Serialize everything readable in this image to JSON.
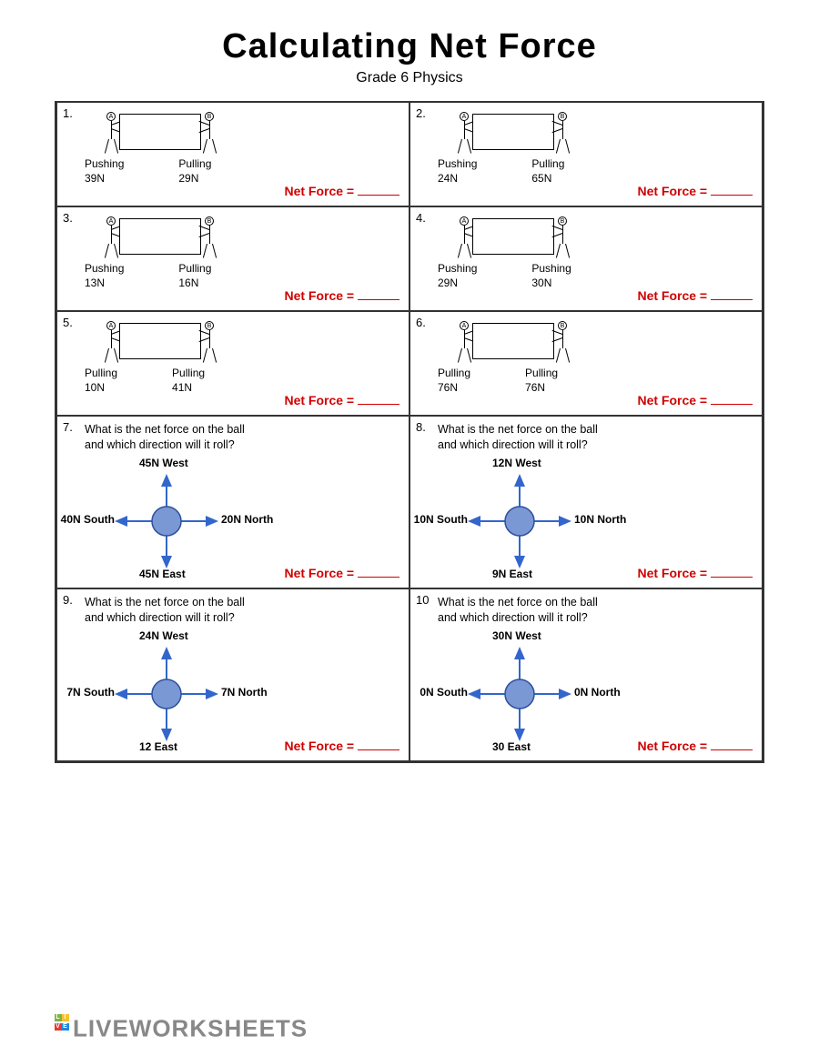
{
  "title": "Calculating Net Force",
  "subtitle": "Grade 6 Physics",
  "netforce_label": "Net Force =",
  "watermark": "LIVEWORKSHEETS",
  "colors": {
    "netforce": "#d10000",
    "ball_fill": "#7a98d4",
    "ball_stroke": "#2d4f9e",
    "arrow": "#3366cc",
    "border": "#333333"
  },
  "stick_problems": [
    {
      "num": "1.",
      "personA": "A",
      "personB": "B",
      "leftAction": "Pushing",
      "leftVal": "39N",
      "rightAction": "Pulling",
      "rightVal": "29N"
    },
    {
      "num": "2.",
      "personA": "A",
      "personB": "B",
      "leftAction": "Pushing",
      "leftVal": "24N",
      "rightAction": "Pulling",
      "rightVal": "65N"
    },
    {
      "num": "3.",
      "personA": "A",
      "personB": "B",
      "leftAction": "Pushing",
      "leftVal": "13N",
      "rightAction": "Pulling",
      "rightVal": "16N"
    },
    {
      "num": "4.",
      "personA": "A",
      "personB": "B",
      "leftAction": "Pushing",
      "leftVal": "29N",
      "rightAction": "Pushing",
      "rightVal": "30N"
    },
    {
      "num": "5.",
      "personA": "A",
      "personB": "B",
      "leftAction": "Pulling",
      "leftVal": "10N",
      "rightAction": "Pulling",
      "rightVal": "41N"
    },
    {
      "num": "6.",
      "personA": "A",
      "personB": "B",
      "leftAction": "Pulling",
      "leftVal": "76N",
      "rightAction": "Pulling",
      "rightVal": "76N"
    }
  ],
  "ball_question": "What is the net force on the ball and which direction will it roll?",
  "ball_problems": [
    {
      "num": "7.",
      "up": "45N West",
      "down": "45N East",
      "left": "40N South",
      "right": "20N North"
    },
    {
      "num": "8.",
      "up": "12N West",
      "down": "9N East",
      "left": "10N South",
      "right": "10N North"
    },
    {
      "num": "9.",
      "up": "24N West",
      "down": "12 East",
      "left": "7N South",
      "right": "7N North"
    },
    {
      "num": "10",
      "up": "30N West",
      "down": "30 East",
      "left": "0N South",
      "right": "0N North"
    }
  ]
}
